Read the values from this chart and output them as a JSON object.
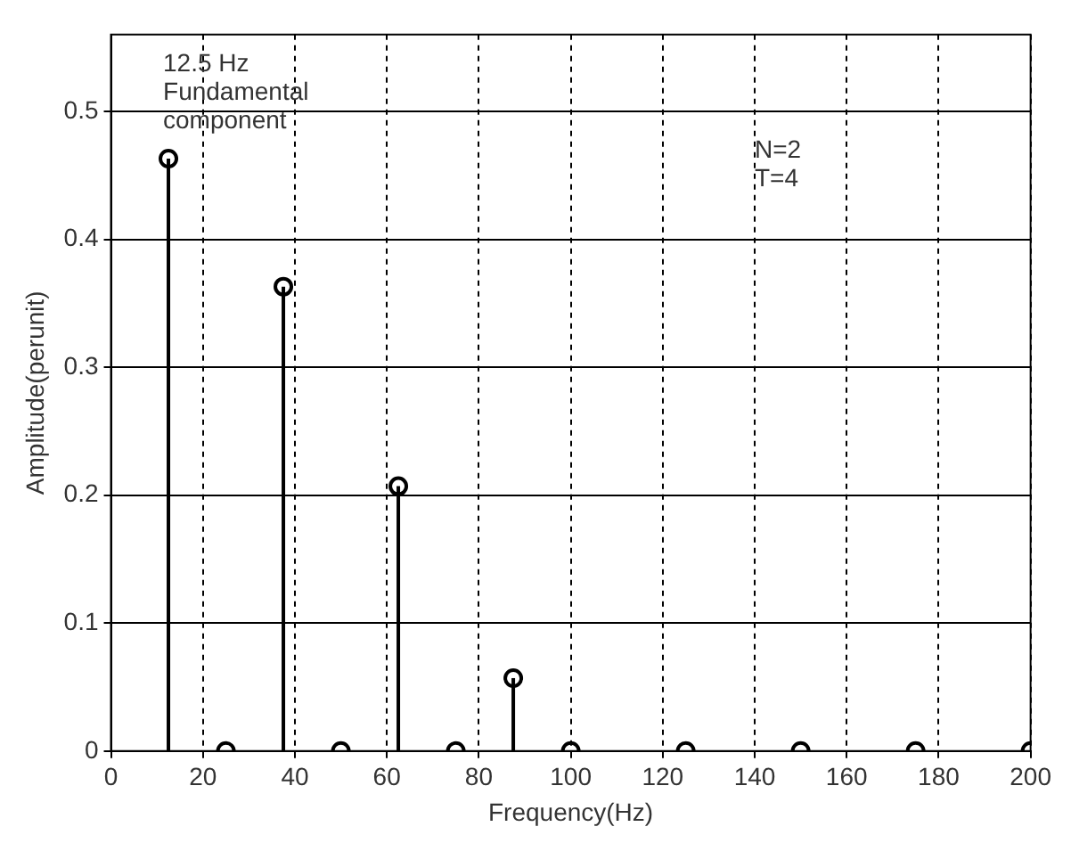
{
  "chart_data": {
    "type": "lollipop",
    "xlabel": "Frequency(Hz)",
    "ylabel": "Amplitude(perunit)",
    "x": [
      12.5,
      25,
      37.5,
      50,
      62.5,
      75,
      87.5,
      100,
      125,
      150,
      175,
      200
    ],
    "series": [
      {
        "color": "#000000",
        "values": [
          0.463,
          0,
          0.363,
          0,
          0.207,
          0,
          0.057,
          0,
          0,
          0,
          0,
          0
        ]
      }
    ],
    "xlim": [
      0,
      200
    ],
    "xticks": [
      0,
      20,
      40,
      60,
      80,
      100,
      120,
      140,
      160,
      180,
      200
    ],
    "ylim": [
      0,
      0.56
    ],
    "yticks": [
      0,
      0.1,
      0.2,
      0.3,
      0.4,
      0.5
    ],
    "grid": true,
    "marker": "circle",
    "legend": false,
    "annotations": [
      {
        "text": "12.5 Hz Fundamental component",
        "x": 12.5,
        "y": 0.463
      },
      "N=2 T=4"
    ]
  }
}
